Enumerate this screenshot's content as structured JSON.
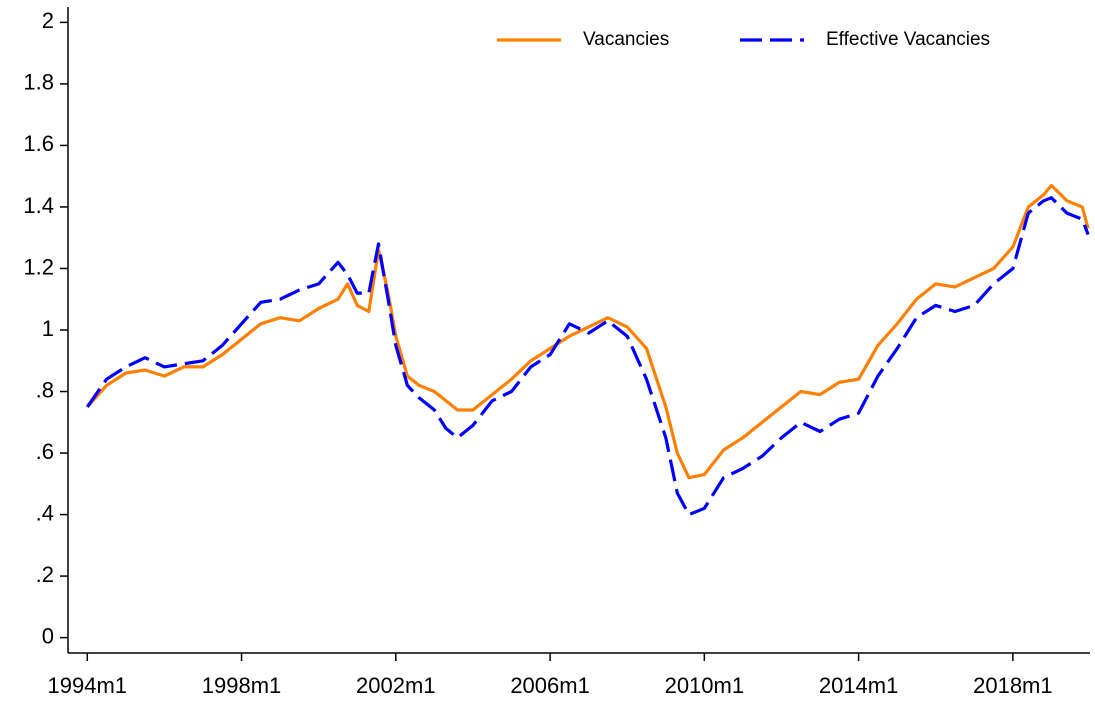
{
  "chart_data": {
    "type": "line",
    "x": [
      1994.0,
      1994.5,
      1995.0,
      1995.5,
      1996.0,
      1996.5,
      1997.0,
      1997.5,
      1998.0,
      1998.5,
      1999.0,
      1999.5,
      2000.0,
      2000.5,
      2000.75,
      2001.0,
      2001.3,
      2001.55,
      2001.8,
      2002.0,
      2002.3,
      2002.6,
      2003.0,
      2003.3,
      2003.6,
      2004.0,
      2004.5,
      2005.0,
      2005.5,
      2006.0,
      2006.5,
      2007.0,
      2007.5,
      2008.0,
      2008.5,
      2009.0,
      2009.3,
      2009.6,
      2010.0,
      2010.5,
      2011.0,
      2011.5,
      2012.0,
      2012.5,
      2013.0,
      2013.5,
      2014.0,
      2014.5,
      2015.0,
      2015.5,
      2016.0,
      2016.5,
      2017.0,
      2017.5,
      2018.0,
      2018.4,
      2018.8,
      2019.0,
      2019.4,
      2019.8,
      2019.95
    ],
    "series": [
      {
        "name": "Vacancies",
        "color": "#ff8000",
        "dash": false,
        "values": [
          0.75,
          0.82,
          0.86,
          0.87,
          0.85,
          0.88,
          0.88,
          0.92,
          0.97,
          1.02,
          1.04,
          1.03,
          1.07,
          1.1,
          1.15,
          1.08,
          1.06,
          1.26,
          1.12,
          0.98,
          0.85,
          0.82,
          0.8,
          0.77,
          0.74,
          0.74,
          0.79,
          0.84,
          0.9,
          0.94,
          0.98,
          1.01,
          1.04,
          1.01,
          0.94,
          0.75,
          0.6,
          0.52,
          0.53,
          0.61,
          0.65,
          0.7,
          0.75,
          0.8,
          0.79,
          0.83,
          0.84,
          0.95,
          1.02,
          1.1,
          1.15,
          1.14,
          1.17,
          1.2,
          1.27,
          1.4,
          1.44,
          1.47,
          1.42,
          1.4,
          1.33
        ]
      },
      {
        "name": "Effective Vacancies",
        "color": "#0000ff",
        "dash": true,
        "values": [
          0.75,
          0.84,
          0.88,
          0.91,
          0.88,
          0.89,
          0.9,
          0.95,
          1.02,
          1.09,
          1.1,
          1.13,
          1.15,
          1.22,
          1.18,
          1.12,
          1.12,
          1.28,
          1.1,
          0.95,
          0.82,
          0.78,
          0.74,
          0.68,
          0.65,
          0.69,
          0.77,
          0.8,
          0.88,
          0.92,
          1.02,
          0.99,
          1.03,
          0.98,
          0.84,
          0.65,
          0.47,
          0.4,
          0.42,
          0.52,
          0.55,
          0.59,
          0.65,
          0.7,
          0.67,
          0.71,
          0.73,
          0.85,
          0.94,
          1.04,
          1.08,
          1.06,
          1.08,
          1.15,
          1.2,
          1.38,
          1.42,
          1.43,
          1.38,
          1.36,
          1.31
        ]
      }
    ],
    "xlim": [
      1993.5,
      2020.0
    ],
    "xticks": [
      {
        "value": 1994,
        "label": "1994m1"
      },
      {
        "value": 1998,
        "label": "1998m1"
      },
      {
        "value": 2002,
        "label": "2002m1"
      },
      {
        "value": 2006,
        "label": "2006m1"
      },
      {
        "value": 2010,
        "label": "2010m1"
      },
      {
        "value": 2014,
        "label": "2014m1"
      },
      {
        "value": 2018,
        "label": "2018m1"
      }
    ],
    "ylim": [
      -0.05,
      2.05
    ],
    "yticks": [
      0,
      {
        "value": 0.2,
        "label": ".2"
      },
      {
        "value": 0.4,
        "label": ".4"
      },
      {
        "value": 0.6,
        "label": ".6"
      },
      {
        "value": 0.8,
        "label": ".8"
      },
      1,
      1.2,
      1.4,
      1.6,
      1.8,
      2
    ],
    "grid": false,
    "legend": "top"
  }
}
